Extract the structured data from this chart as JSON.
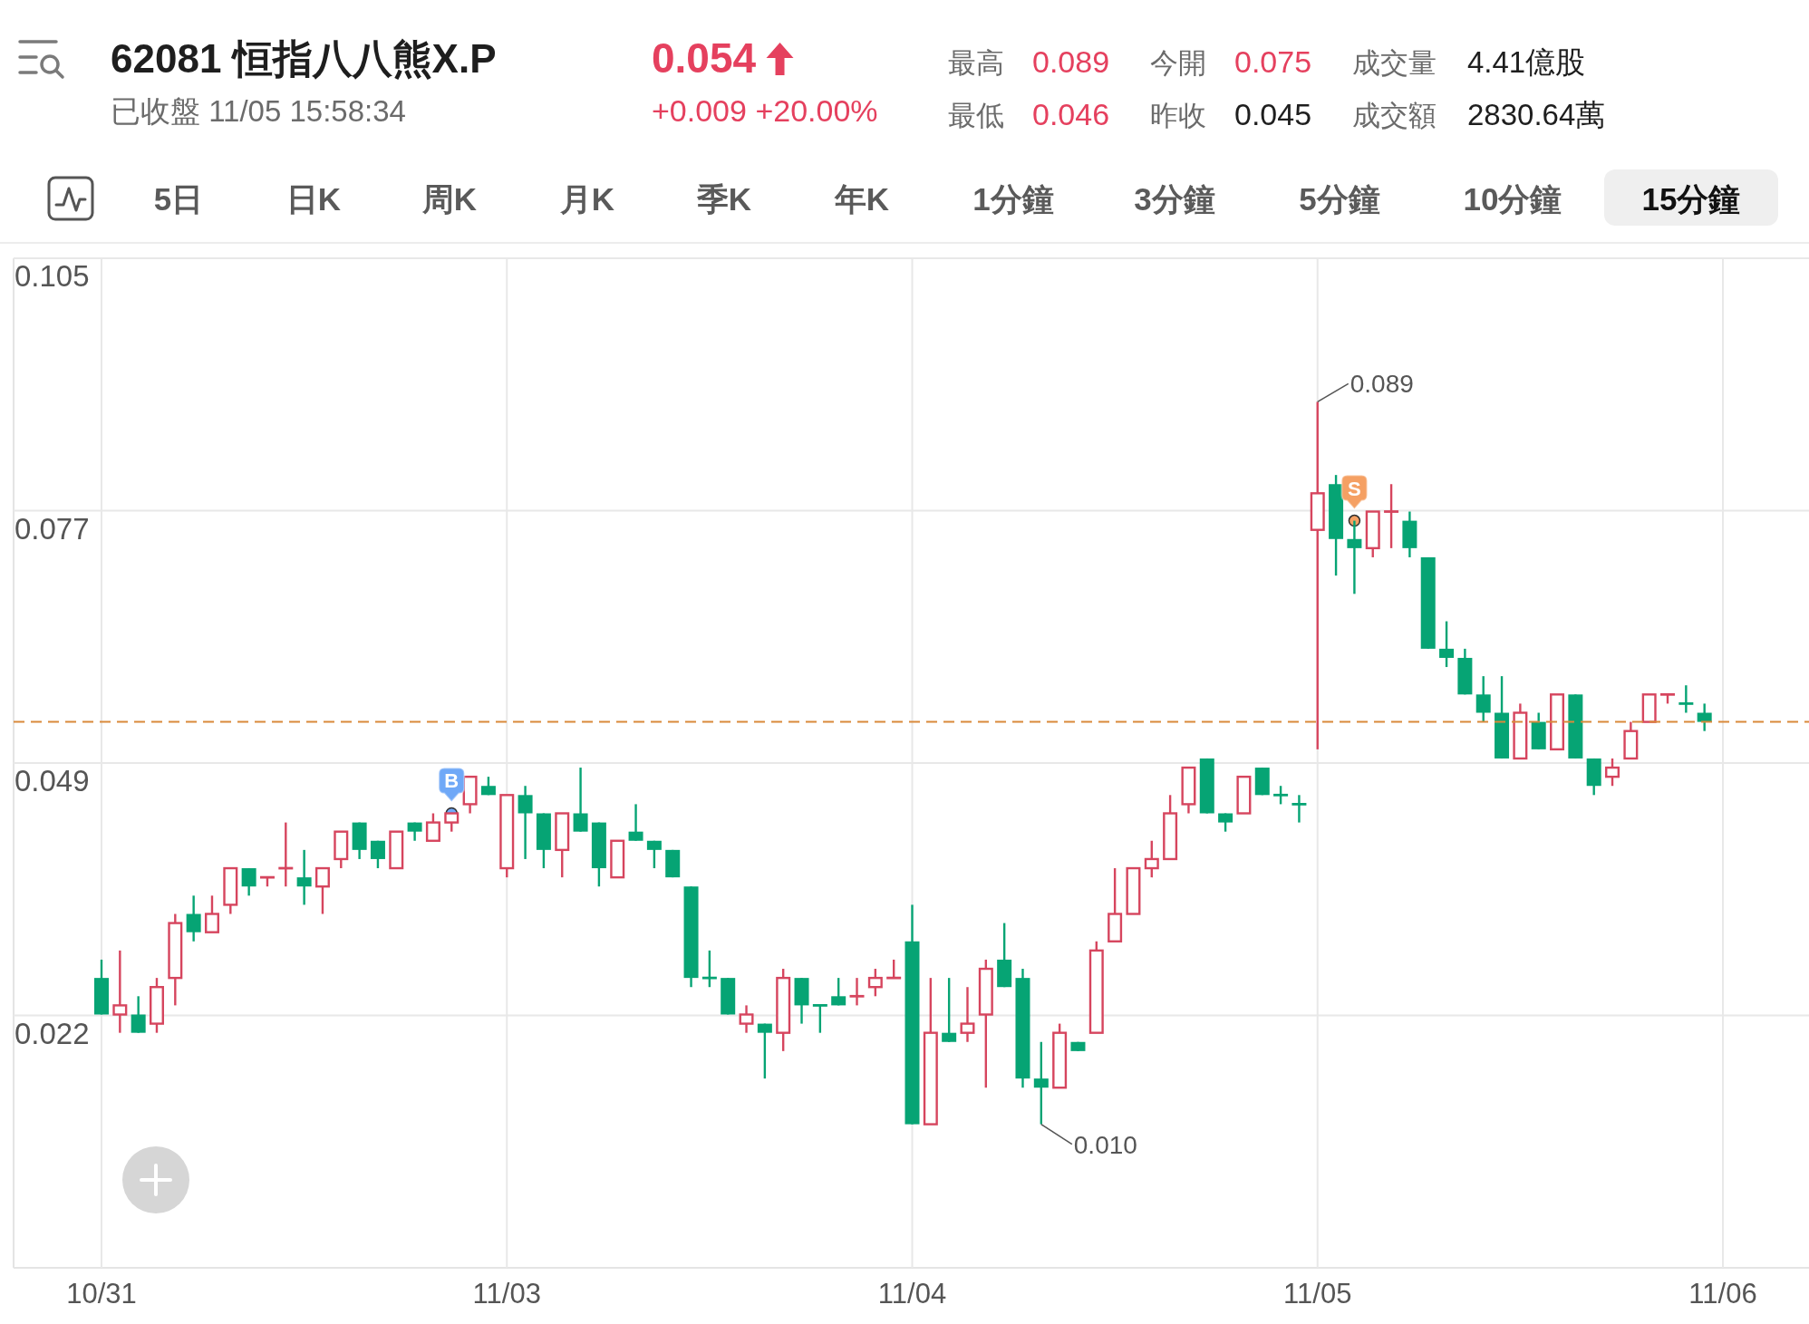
{
  "chart_data": {
    "type": "candlestick",
    "title": "62081 恒指八八熊X.P",
    "subtitle": "已收盤 11/05 15:58:34",
    "annotations": [
      "0.054",
      "+0.009 +20.00%",
      "最高",
      "0.089",
      "今開",
      "0.075",
      "成交量",
      "4.41億股",
      "最低",
      "0.046",
      "昨收",
      "0.045",
      "成交額",
      "2830.64萬",
      "5日",
      "日K",
      "周K",
      "月K",
      "季K",
      "年K",
      "1分鐘",
      "3分鐘",
      "5分鐘",
      "10分鐘",
      "15分鐘",
      "0.089",
      "0.010"
    ],
    "categories": [
      "10/31",
      null,
      null,
      null,
      null,
      null,
      null,
      null,
      null,
      null,
      null,
      null,
      null,
      null,
      null,
      null,
      null,
      null,
      null,
      null,
      null,
      null,
      "11/03",
      null,
      null,
      null,
      null,
      null,
      null,
      null,
      null,
      null,
      null,
      null,
      null,
      null,
      null,
      null,
      null,
      null,
      null,
      null,
      null,
      null,
      "11/04",
      null,
      null,
      null,
      null,
      null,
      null,
      null,
      null,
      null,
      null,
      null,
      null,
      null,
      null,
      null,
      null,
      null,
      null,
      null,
      null,
      null,
      "11/05",
      null,
      null,
      null,
      null,
      null,
      null,
      null,
      null,
      null,
      null,
      null,
      null,
      null,
      null,
      null,
      null,
      null,
      null,
      null,
      null,
      null,
      "11/06"
    ],
    "ohlc": [
      [
        0.026,
        0.028,
        0.022,
        0.022
      ],
      [
        0.022,
        0.029,
        0.02,
        0.023
      ],
      [
        0.022,
        0.024,
        0.02,
        0.02
      ],
      [
        0.021,
        0.026,
        0.02,
        0.025
      ],
      [
        0.026,
        0.033,
        0.023,
        0.032
      ],
      [
        0.033,
        0.035,
        0.03,
        0.031
      ],
      [
        0.031,
        0.035,
        0.031,
        0.033
      ],
      [
        0.034,
        0.038,
        0.033,
        0.038
      ],
      [
        0.038,
        0.038,
        0.035,
        0.036
      ],
      [
        0.037,
        0.037,
        0.036,
        0.037
      ],
      [
        0.038,
        0.043,
        0.036,
        0.038
      ],
      [
        0.037,
        0.04,
        0.034,
        0.036
      ],
      [
        0.036,
        0.038,
        0.033,
        0.038
      ],
      [
        0.039,
        0.042,
        0.038,
        0.042
      ],
      [
        0.043,
        0.043,
        0.039,
        0.04
      ],
      [
        0.041,
        0.041,
        0.038,
        0.039
      ],
      [
        0.038,
        0.042,
        0.038,
        0.042
      ],
      [
        0.043,
        0.043,
        0.041,
        0.042
      ],
      [
        0.041,
        0.044,
        0.041,
        0.043
      ],
      [
        0.043,
        0.044,
        0.042,
        0.044
      ],
      [
        0.045,
        0.048,
        0.044,
        0.048
      ],
      [
        0.047,
        0.048,
        0.046,
        0.046
      ],
      [
        0.038,
        0.046,
        0.037,
        0.046
      ],
      [
        0.046,
        0.047,
        0.039,
        0.044
      ],
      [
        0.044,
        0.044,
        0.038,
        0.04
      ],
      [
        0.04,
        0.044,
        0.037,
        0.044
      ],
      [
        0.044,
        0.049,
        0.042,
        0.042
      ],
      [
        0.043,
        0.043,
        0.036,
        0.038
      ],
      [
        0.037,
        0.041,
        0.037,
        0.041
      ],
      [
        0.042,
        0.045,
        0.041,
        0.041
      ],
      [
        0.041,
        0.041,
        0.038,
        0.04
      ],
      [
        0.04,
        0.04,
        0.037,
        0.037
      ],
      [
        0.036,
        0.036,
        0.025,
        0.026
      ],
      [
        0.026,
        0.029,
        0.025,
        0.026
      ],
      [
        0.026,
        0.026,
        0.022,
        0.022
      ],
      [
        0.021,
        0.023,
        0.02,
        0.022
      ],
      [
        0.021,
        0.021,
        0.015,
        0.02
      ],
      [
        0.02,
        0.027,
        0.018,
        0.026
      ],
      [
        0.026,
        0.026,
        0.021,
        0.023
      ],
      [
        0.023,
        0.023,
        0.02,
        0.023
      ],
      [
        0.024,
        0.026,
        0.023,
        0.023
      ],
      [
        0.024,
        0.026,
        0.023,
        0.024
      ],
      [
        0.025,
        0.027,
        0.024,
        0.026
      ],
      [
        0.026,
        0.028,
        0.026,
        0.026
      ],
      [
        0.03,
        0.034,
        0.01,
        0.01
      ],
      [
        0.01,
        0.026,
        0.01,
        0.02
      ],
      [
        0.02,
        0.026,
        0.019,
        0.019
      ],
      [
        0.02,
        0.025,
        0.019,
        0.021
      ],
      [
        0.022,
        0.028,
        0.014,
        0.027
      ],
      [
        0.028,
        0.032,
        0.025,
        0.025
      ],
      [
        0.026,
        0.027,
        0.014,
        0.015
      ],
      [
        0.015,
        0.019,
        0.01,
        0.014
      ],
      [
        0.014,
        0.021,
        0.014,
        0.02
      ],
      [
        0.019,
        0.019,
        0.018,
        0.018
      ],
      [
        0.02,
        0.03,
        0.02,
        0.029
      ],
      [
        0.03,
        0.038,
        0.03,
        0.033
      ],
      [
        0.033,
        0.038,
        0.033,
        0.038
      ],
      [
        0.038,
        0.041,
        0.037,
        0.039
      ],
      [
        0.039,
        0.046,
        0.039,
        0.044
      ],
      [
        0.045,
        0.049,
        0.044,
        0.049
      ],
      [
        0.05,
        0.05,
        0.044,
        0.044
      ],
      [
        0.044,
        0.044,
        0.042,
        0.043
      ],
      [
        0.044,
        0.048,
        0.044,
        0.048
      ],
      [
        0.049,
        0.049,
        0.046,
        0.046
      ],
      [
        0.046,
        0.047,
        0.045,
        0.046
      ],
      [
        0.045,
        0.046,
        0.043,
        0.045
      ],
      [
        0.075,
        0.089,
        0.051,
        0.079
      ],
      [
        0.08,
        0.081,
        0.07,
        0.074
      ],
      [
        0.074,
        0.076,
        0.068,
        0.073
      ],
      [
        0.073,
        0.077,
        0.072,
        0.077
      ],
      [
        0.077,
        0.08,
        0.073,
        0.077
      ],
      [
        0.076,
        0.077,
        0.072,
        0.073
      ],
      [
        0.072,
        0.072,
        0.062,
        0.062
      ],
      [
        0.062,
        0.065,
        0.06,
        0.061
      ],
      [
        0.061,
        0.062,
        0.057,
        0.057
      ],
      [
        0.057,
        0.059,
        0.054,
        0.055
      ],
      [
        0.055,
        0.059,
        0.05,
        0.05
      ],
      [
        0.05,
        0.056,
        0.05,
        0.055
      ],
      [
        0.054,
        0.055,
        0.051,
        0.051
      ],
      [
        0.051,
        0.057,
        0.051,
        0.057
      ],
      [
        0.057,
        0.057,
        0.05,
        0.05
      ],
      [
        0.05,
        0.05,
        0.046,
        0.047
      ],
      [
        0.048,
        0.05,
        0.047,
        0.049
      ],
      [
        0.05,
        0.054,
        0.05,
        0.053
      ],
      [
        0.054,
        0.057,
        0.054,
        0.057
      ],
      [
        0.057,
        0.057,
        0.056,
        0.057
      ],
      [
        0.056,
        0.058,
        0.055,
        0.056
      ],
      [
        0.055,
        0.056,
        0.053,
        0.054
      ],
      null
    ],
    "colors": [
      "#06a474",
      "#d6455e",
      "#06a474",
      "#d6455e",
      "#d6455e",
      "#06a474",
      "#d6455e",
      "#d6455e",
      "#06a474",
      "#d6455e",
      "#d6455e",
      "#06a474",
      "#d6455e",
      "#d6455e",
      "#06a474",
      "#06a474",
      "#d6455e",
      "#06a474",
      "#d6455e",
      "#d6455e",
      "#d6455e",
      "#06a474",
      "#d6455e",
      "#06a474",
      "#06a474",
      "#d6455e",
      "#06a474",
      "#06a474",
      "#d6455e",
      "#06a474",
      "#06a474",
      "#06a474",
      "#06a474",
      "#06a474",
      "#06a474",
      "#d6455e",
      "#06a474",
      "#d6455e",
      "#06a474",
      "#06a474",
      "#06a474",
      "#d6455e",
      "#d6455e",
      "#d6455e",
      "#06a474",
      "#d6455e",
      "#06a474",
      "#d6455e",
      "#d6455e",
      "#06a474",
      "#06a474",
      "#06a474",
      "#d6455e",
      "#06a474",
      "#d6455e",
      "#d6455e",
      "#d6455e",
      "#d6455e",
      "#d6455e",
      "#d6455e",
      "#06a474",
      "#06a474",
      "#d6455e",
      "#06a474",
      "#06a474",
      "#06a474",
      "#d6455e",
      "#06a474",
      "#06a474",
      "#d6455e",
      "#d6455e",
      "#06a474",
      "#06a474",
      "#06a474",
      "#06a474",
      "#06a474",
      "#06a474",
      "#d6455e",
      "#06a474",
      "#d6455e",
      "#06a474",
      "#06a474",
      "#d6455e",
      "#d6455e",
      "#d6455e",
      "#d6455e",
      "#06a474",
      "#06a474",
      null
    ],
    "series": [
      {
        "type": "scatter",
        "name": "B",
        "color": "#6fa8f7",
        "values": [
          null,
          null,
          null,
          null,
          null,
          null,
          null,
          null,
          null,
          null,
          null,
          null,
          null,
          null,
          null,
          null,
          null,
          null,
          null,
          0.044,
          null,
          null,
          null,
          null,
          null,
          null,
          null,
          null,
          null,
          null,
          null,
          null,
          null,
          null,
          null,
          null,
          null,
          null,
          null,
          null,
          null,
          null,
          null,
          null,
          null,
          null,
          null,
          null,
          null,
          null,
          null,
          null,
          null,
          null,
          null,
          null,
          null,
          null,
          null,
          null,
          null,
          null,
          null,
          null,
          null,
          null,
          null,
          null,
          null,
          null,
          null,
          null,
          null,
          null,
          null,
          null,
          null,
          null,
          null,
          null,
          null,
          null,
          null,
          null,
          null,
          null,
          null,
          null,
          null
        ]
      },
      {
        "type": "scatter",
        "name": "S",
        "color": "#f5a063",
        "values": [
          null,
          null,
          null,
          null,
          null,
          null,
          null,
          null,
          null,
          null,
          null,
          null,
          null,
          null,
          null,
          null,
          null,
          null,
          null,
          null,
          null,
          null,
          null,
          null,
          null,
          null,
          null,
          null,
          null,
          null,
          null,
          null,
          null,
          null,
          null,
          null,
          null,
          null,
          null,
          null,
          null,
          null,
          null,
          null,
          null,
          null,
          null,
          null,
          null,
          null,
          null,
          null,
          null,
          null,
          null,
          null,
          null,
          null,
          null,
          null,
          null,
          null,
          null,
          null,
          null,
          null,
          null,
          null,
          0.076,
          null,
          null,
          null,
          null,
          null,
          null,
          null,
          null,
          null,
          null,
          null,
          null,
          null,
          null,
          null,
          null,
          null,
          null,
          null,
          null
        ]
      }
    ],
    "ylim": [
      -0.0057,
      0.1047
    ],
    "yticks": [
      {
        "value": 0.1047,
        "label": "0.105"
      },
      {
        "value": 0.0771,
        "label": "0.077"
      },
      {
        "value": 0.0495,
        "label": "0.049"
      },
      {
        "value": 0.0219,
        "label": "0.022"
      }
    ],
    "ref_lines": [
      {
        "axis": "y",
        "value": 0.054,
        "color": "#d9893a",
        "line_style": "dashed"
      }
    ],
    "grid": true
  }
}
